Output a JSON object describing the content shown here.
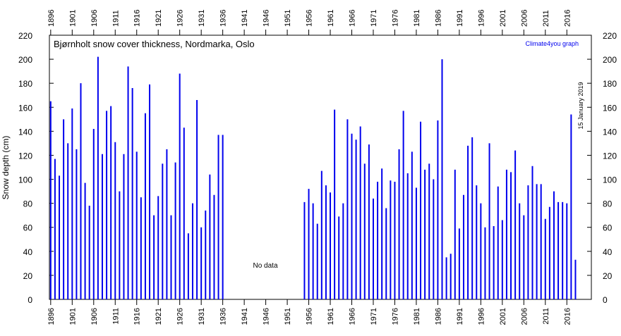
{
  "chart_data": {
    "type": "bar",
    "title": "Bjørnholt snow cover thickness, Nordmarka, Oslo",
    "credit": "Climate4you graph",
    "date_note": "15 January 2019",
    "annotation": "No data",
    "y_label": "Snow depth (cm)",
    "color": "#0000ee",
    "x": [
      1896,
      1897,
      1898,
      1899,
      1900,
      1901,
      1902,
      1903,
      1904,
      1905,
      1906,
      1907,
      1908,
      1909,
      1910,
      1911,
      1912,
      1913,
      1914,
      1915,
      1916,
      1917,
      1918,
      1919,
      1920,
      1921,
      1922,
      1923,
      1924,
      1925,
      1926,
      1927,
      1928,
      1929,
      1930,
      1931,
      1932,
      1933,
      1934,
      1935,
      1936,
      1955,
      1956,
      1957,
      1958,
      1959,
      1960,
      1961,
      1962,
      1963,
      1964,
      1965,
      1966,
      1967,
      1968,
      1969,
      1970,
      1971,
      1972,
      1973,
      1974,
      1975,
      1976,
      1977,
      1978,
      1979,
      1980,
      1981,
      1982,
      1983,
      1984,
      1985,
      1986,
      1987,
      1988,
      1989,
      1990,
      1991,
      1992,
      1993,
      1994,
      1995,
      1996,
      1997,
      1998,
      1999,
      2000,
      2001,
      2002,
      2003,
      2004,
      2005,
      2006,
      2007,
      2008,
      2009,
      2010,
      2011,
      2012,
      2013,
      2014,
      2015,
      2016,
      2017,
      2018
    ],
    "values": [
      165,
      117,
      103,
      150,
      130,
      159,
      125,
      180,
      97,
      78,
      142,
      202,
      121,
      157,
      161,
      131,
      90,
      121,
      194,
      176,
      123,
      85,
      155,
      179,
      70,
      86,
      113,
      125,
      70,
      114,
      188,
      143,
      55,
      80,
      166,
      60,
      74,
      104,
      87,
      137,
      137,
      81,
      92,
      80,
      63,
      107,
      95,
      89,
      158,
      69,
      80,
      150,
      138,
      133,
      144,
      113,
      129,
      84,
      98,
      109,
      76,
      99,
      98,
      125,
      157,
      105,
      123,
      93,
      148,
      108,
      113,
      100,
      149,
      200,
      35,
      38,
      108,
      59,
      87,
      128,
      135,
      95,
      80,
      60,
      130,
      61,
      94,
      66,
      108,
      106,
      124,
      80,
      70,
      95,
      111,
      96,
      96,
      67,
      77,
      90,
      81,
      81,
      80,
      154,
      33
    ],
    "xlim": [
      1895.7,
      2021.7
    ],
    "ylim": [
      0,
      220
    ],
    "xticks": [
      1896,
      1901,
      1906,
      1911,
      1916,
      1921,
      1926,
      1931,
      1936,
      1941,
      1946,
      1951,
      1956,
      1961,
      1966,
      1971,
      1976,
      1981,
      1986,
      1991,
      1996,
      2001,
      2006,
      2011,
      2016
    ],
    "yticks": [
      0,
      20,
      40,
      60,
      80,
      100,
      120,
      140,
      160,
      180,
      200,
      220
    ]
  }
}
